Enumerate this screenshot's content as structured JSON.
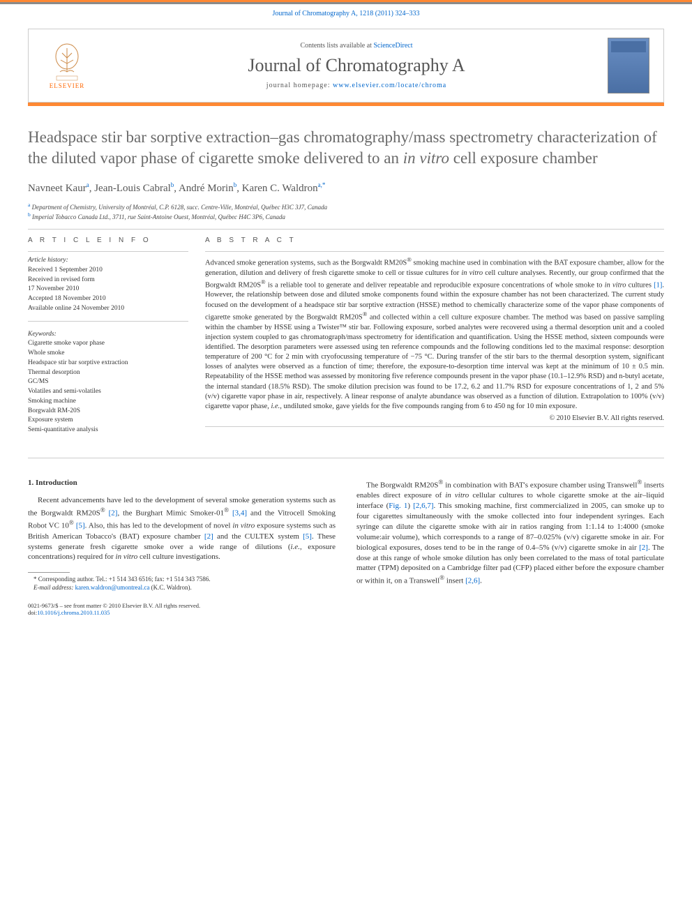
{
  "header": {
    "citation": "Journal of Chromatography A, 1218 (2011) 324–333",
    "contents_prefix": "Contents lists available at ",
    "contents_link": "ScienceDirect",
    "journal_title": "Journal of Chromatography A",
    "homepage_prefix": "journal homepage: ",
    "homepage_url": "www.elsevier.com/locate/chroma",
    "publisher": "ELSEVIER"
  },
  "article": {
    "title_pre": "Headspace stir bar sorptive extraction–gas chromatography/mass spectrometry characterization of the diluted vapor phase of cigarette smoke delivered to an ",
    "title_em": "in vitro",
    "title_post": " cell exposure chamber",
    "authors_html": "Navneet Kaur<sup>a</sup>, Jean-Louis Cabral<sup>b</sup>, André Morin<sup>b</sup>, Karen C. Waldron<sup>a,*</sup>",
    "affil_a": "Department of Chemistry, University of Montréal, C.P. 6128, succ. Centre-Ville, Montréal, Québec H3C 3J7, Canada",
    "affil_b": "Imperial Tobacco Canada Ltd., 3711, rue Saint-Antoine Ouest, Montréal, Québec H4C 3P6, Canada"
  },
  "info": {
    "head": "A R T I C L E   I N F O",
    "history_label": "Article history:",
    "history": [
      "Received 1 September 2010",
      "Received in revised form",
      "17 November 2010",
      "Accepted 18 November 2010",
      "Available online 24 November 2010"
    ],
    "keywords_label": "Keywords:",
    "keywords": [
      "Cigarette smoke vapor phase",
      "Whole smoke",
      "Headspace stir bar sorptive extraction",
      "Thermal desorption",
      "GC/MS",
      "Volatiles and semi-volatiles",
      "Smoking machine",
      "Borgwaldt RM-20S",
      "Exposure system",
      "Semi-quantitative analysis"
    ]
  },
  "abstract": {
    "head": "A B S T R A C T",
    "text_html": "Advanced smoke generation systems, such as the Borgwaldt RM20S<sup>®</sup> smoking machine used in combination with the BAT exposure chamber, allow for the generation, dilution and delivery of fresh cigarette smoke to cell or tissue cultures for <em>in vitro</em> cell culture analyses. Recently, our group confirmed that the Borgwaldt RM20S<sup>®</sup> is a reliable tool to generate and deliver repeatable and reproducible exposure concentrations of whole smoke to <em>in vitro</em> cultures <a>[1]</a>. However, the relationship between dose and diluted smoke components found within the exposure chamber has not been characterized. The current study focused on the development of a headspace stir bar sorptive extraction (HSSE) method to chemically characterize some of the vapor phase components of cigarette smoke generated by the Borgwaldt RM20S<sup>®</sup> and collected within a cell culture exposure chamber. The method was based on passive sampling within the chamber by HSSE using a Twister™ stir bar. Following exposure, sorbed analytes were recovered using a thermal desorption unit and a cooled injection system coupled to gas chromatograph/mass spectrometry for identification and quantification. Using the HSSE method, sixteen compounds were identified. The desorption parameters were assessed using ten reference compounds and the following conditions led to the maximal response: desorption temperature of 200 °C for 2 min with cryofocussing temperature of −75 °C. During transfer of the stir bars to the thermal desorption system, significant losses of analytes were observed as a function of time; therefore, the exposure-to-desorption time interval was kept at the minimum of 10 ± 0.5 min. Repeatability of the HSSE method was assessed by monitoring five reference compounds present in the vapor phase (10.1–12.9% RSD) and n-butyl acetate, the internal standard (18.5% RSD). The smoke dilution precision was found to be 17.2, 6.2 and 11.7% RSD for exposure concentrations of 1, 2 and 5% (v/v) cigarette vapor phase in air, respectively. A linear response of analyte abundance was observed as a function of dilution. Extrapolation to 100% (v/v) cigarette vapor phase, <em>i.e.</em>, undiluted smoke, gave yields for the five compounds ranging from 6 to 450 ng for 10 min exposure.",
    "copyright": "© 2010 Elsevier B.V. All rights reserved."
  },
  "body": {
    "intro_head": "1.  Introduction",
    "intro_p1_html": "Recent advancements have led to the development of several smoke generation systems such as the Borgwaldt RM20S<sup>®</sup> <a>[2]</a>, the Burghart Mimic Smoker-01<sup>®</sup> <a>[3,4]</a> and the Vitrocell Smoking Robot VC 10<sup>®</sup> <a>[5]</a>. Also, this has led to the development of novel <em>in vitro</em> exposure systems such as British American Tobacco's (BAT) exposure chamber <a>[2]</a> and the CULTEX system <a>[5]</a>. These systems generate fresh cigarette smoke over a wide range of dilutions (<em>i.e.</em>, exposure concentrations) required for <em>in vitro</em> cell culture investigations.",
    "intro_p2_html": "The Borgwaldt RM20S<sup>®</sup> in combination with BAT's exposure chamber using Transwell<sup>®</sup> inserts enables direct exposure of <em>in vitro</em> cellular cultures to whole cigarette smoke at the air–liquid interface (<a>Fig. 1</a>) <a>[2,6,7]</a>. This smoking machine, first commercialized in 2005, can smoke up to four cigarettes simultaneously with the smoke collected into four independent syringes. Each syringe can dilute the cigarette smoke with air in ratios ranging from 1:1.14 to 1:4000 (smoke volume:air volume), which corresponds to a range of 87–0.025% (v/v) cigarette smoke in air. For biological exposures, doses tend to be in the range of 0.4–5% (v/v) cigarette smoke in air <a>[2]</a>. The dose at this range of whole smoke dilution has only been correlated to the mass of total particulate matter (TPM) deposited on a Cambridge filter pad (CFP) placed either before the exposure chamber or within it, on a Transwell<sup>®</sup> insert <a>[2,6]</a>."
  },
  "footnote": {
    "corr_html": "* Corresponding author. Tel.: +1 514 343 6516; fax: +1 514 343 7586.",
    "email_label": "E-mail address:",
    "email": "karen.waldron@umontreal.ca",
    "email_suffix": "(K.C. Waldron)."
  },
  "footer": {
    "issn": "0021-9673/$ – see front matter © 2010 Elsevier B.V. All rights reserved.",
    "doi_label": "doi:",
    "doi": "10.1016/j.chroma.2010.11.035"
  }
}
